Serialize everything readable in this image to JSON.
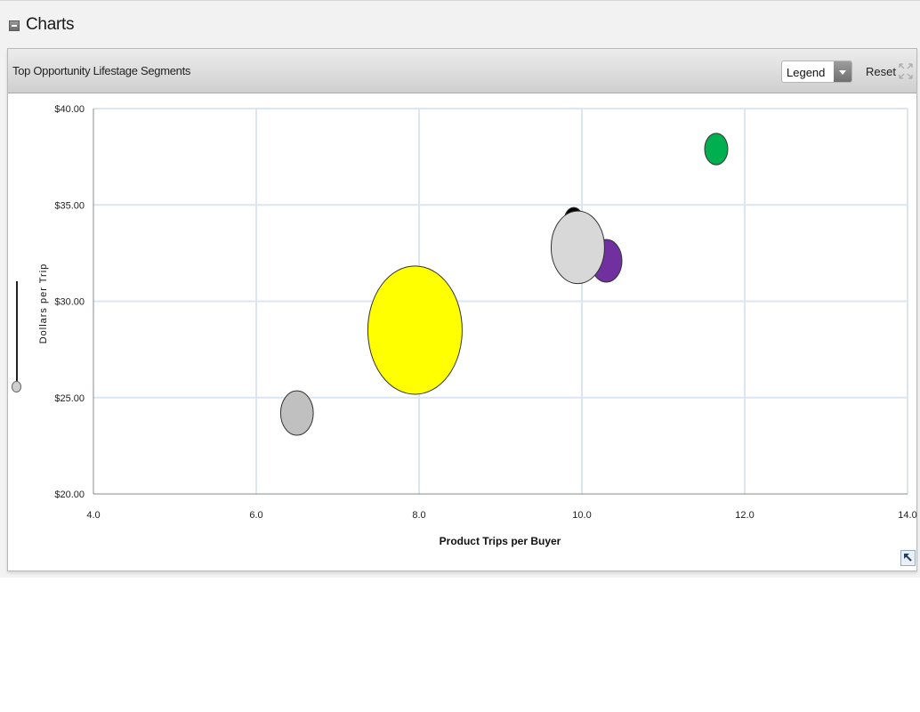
{
  "section": {
    "title": "Charts"
  },
  "panel": {
    "title": "Top Opportunity Lifestage Segments",
    "legend_select": {
      "selected": "Legend"
    },
    "reset_label": "Reset"
  },
  "icons": {
    "collapse": "minus-square-icon",
    "dropdown": "chevron-down-icon",
    "expand": "expand-arrows-icon",
    "corner": "arrow-up-left-icon",
    "zoom_handle": "zoom-slider-handle"
  },
  "chart_data": {
    "type": "scatter",
    "variant": "bubble",
    "xlabel": "Product Trips per Buyer",
    "ylabel": "Dollars per Trip",
    "xlim": [
      4.0,
      14.0
    ],
    "ylim": [
      20.0,
      40.0
    ],
    "x_ticks": [
      "4.0",
      "6.0",
      "8.0",
      "10.0",
      "12.0",
      "14.0"
    ],
    "y_ticks": [
      "$20.00",
      "$25.00",
      "$30.00",
      "$35.00",
      "$40.00"
    ],
    "grid": true,
    "series": [
      {
        "color": "#c0c0c0",
        "x": 6.5,
        "y": 24.2,
        "size": 0.12
      },
      {
        "color": "#ffff00",
        "x": 7.95,
        "y": 28.5,
        "size": 1.0
      },
      {
        "color": "#7030a0",
        "x": 10.3,
        "y": 32.1,
        "size": 0.11
      },
      {
        "color": "#000000",
        "x": 9.9,
        "y": 34.2,
        "size": 0.04
      },
      {
        "color": "#d8d8d8",
        "x": 9.95,
        "y": 32.8,
        "size": 0.32
      },
      {
        "color": "#00b050",
        "x": 11.65,
        "y": 37.9,
        "size": 0.06
      }
    ]
  }
}
